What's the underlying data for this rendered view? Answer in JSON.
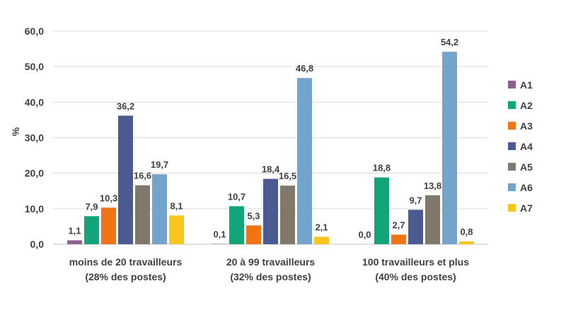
{
  "chart_data": {
    "type": "bar",
    "ylabel": "%",
    "ylim": [
      0,
      60
    ],
    "yticks": [
      "0,0",
      "10,0",
      "20,0",
      "30,0",
      "40,0",
      "50,0",
      "60,0"
    ],
    "grid": true,
    "legend_position": "right",
    "categories": [
      [
        "moins de 20 travailleurs",
        "(28% des postes)"
      ],
      [
        "20 à 99 travailleurs",
        "(32% des postes)"
      ],
      [
        "100 travailleurs et plus",
        "(40% des postes)"
      ]
    ],
    "series": [
      {
        "name": "A1",
        "color": "#8e5f8f",
        "values": [
          1.1,
          0.1,
          0.0
        ],
        "labels": [
          "1,1",
          "0,1",
          "0,0"
        ]
      },
      {
        "name": "A2",
        "color": "#11a579",
        "values": [
          7.9,
          10.7,
          18.8
        ],
        "labels": [
          "7,9",
          "10,7",
          "18,8"
        ]
      },
      {
        "name": "A3",
        "color": "#f07316",
        "values": [
          10.3,
          5.3,
          2.7
        ],
        "labels": [
          "10,3",
          "5,3",
          "2,7"
        ]
      },
      {
        "name": "A4",
        "color": "#4b5b92",
        "values": [
          36.2,
          18.4,
          9.7
        ],
        "labels": [
          "36,2",
          "18,4",
          "9,7"
        ]
      },
      {
        "name": "A5",
        "color": "#7f786b",
        "values": [
          16.6,
          16.5,
          13.8
        ],
        "labels": [
          "16,6",
          "16,5",
          "13,8"
        ]
      },
      {
        "name": "A6",
        "color": "#72a4cc",
        "values": [
          19.7,
          46.8,
          54.2
        ],
        "labels": [
          "19,7",
          "46,8",
          "54,2"
        ]
      },
      {
        "name": "A7",
        "color": "#f8c61d",
        "values": [
          8.1,
          2.1,
          0.8
        ],
        "labels": [
          "8,1",
          "2,1",
          "0,8"
        ]
      }
    ]
  }
}
